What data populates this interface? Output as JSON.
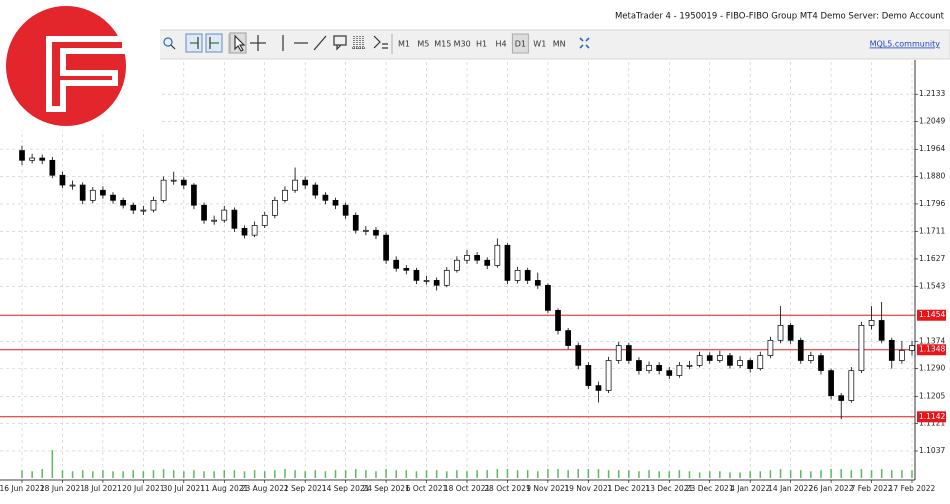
{
  "window": {
    "title": "MetaTrader 4 - 1950019 - FIBO-FIBO Group MT4 Demo Server: Demo Account",
    "timeframes": [
      "M1",
      "M5",
      "M15",
      "M30",
      "H1",
      "H4",
      "D1",
      "W1",
      "MN"
    ],
    "active_timeframe": "D1",
    "link": "MQL5.community"
  },
  "chart_data": {
    "type": "candlestick",
    "categories": [
      "16 Jun 2021",
      null,
      null,
      null,
      "28 Jun 2021",
      null,
      null,
      null,
      "8 Jul 2021",
      null,
      null,
      null,
      "20 Jul 2021",
      null,
      null,
      null,
      "30 Jul 2021",
      null,
      null,
      null,
      "11 Aug 2021",
      null,
      null,
      null,
      "23 Aug 2021",
      null,
      null,
      null,
      "2 Sep 2021",
      null,
      null,
      null,
      "14 Sep 2021",
      null,
      null,
      null,
      "24 Sep 2021",
      null,
      null,
      null,
      "6 Oct 2021",
      null,
      null,
      null,
      "18 Oct 2021",
      null,
      null,
      null,
      "28 Oct 2021",
      null,
      null,
      null,
      "9 Nov 2021",
      null,
      null,
      null,
      "19 Nov 2021",
      null,
      null,
      null,
      "1 Dec 2021",
      null,
      null,
      null,
      "13 Dec 2021",
      null,
      null,
      null,
      "23 Dec 2021",
      null,
      null,
      null,
      "4 Jan 2022",
      null,
      null,
      null,
      "14 Jan 2022",
      null,
      null,
      null,
      "26 Jan 2022",
      null,
      null,
      null,
      "7 Feb 2022",
      null,
      null,
      null,
      "17 Feb 2022"
    ],
    "open": [
      1.196,
      1.193,
      1.1937,
      1.193,
      1.1884,
      1.1854,
      1.1854,
      1.1807,
      1.1838,
      1.1823,
      1.1807,
      1.1792,
      1.1777,
      1.1777,
      1.1807,
      1.1869,
      1.1869,
      1.1854,
      1.1792,
      1.1746,
      1.1746,
      1.1777,
      1.1721,
      1.17,
      1.173,
      1.1761,
      1.1807,
      1.1838,
      1.1869,
      1.1854,
      1.1823,
      1.1807,
      1.1792,
      1.1761,
      1.1715,
      1.1715,
      1.17,
      1.1623,
      1.1598,
      1.1592,
      1.1561,
      1.1561,
      1.1546,
      1.1592,
      1.1623,
      1.1638,
      1.1623,
      1.1607,
      1.1669,
      1.1561,
      1.1592,
      1.1561,
      1.1546,
      1.1469,
      1.1407,
      1.1361,
      1.13,
      1.1238,
      1.1223,
      1.1315,
      1.1361,
      1.1315,
      1.1284,
      1.13,
      1.1284,
      1.1269,
      1.13,
      1.13,
      1.133,
      1.1315,
      1.133,
      1.13,
      1.1315,
      1.129,
      1.133,
      1.1377,
      1.1423,
      1.1377,
      1.1315,
      1.133,
      1.1284,
      1.1207,
      1.1192,
      1.1284,
      1.1423,
      1.1438,
      1.1377,
      1.1315,
      1.1346
    ],
    "high": [
      1.1975,
      1.195,
      1.1948,
      1.194,
      1.1895,
      1.1868,
      1.1862,
      1.1848,
      1.185,
      1.1832,
      1.1815,
      1.18,
      1.179,
      1.1818,
      1.188,
      1.1895,
      1.1878,
      1.186,
      1.18,
      1.176,
      1.179,
      1.1785,
      1.173,
      1.1742,
      1.1772,
      1.1818,
      1.185,
      1.1908,
      1.188,
      1.1862,
      1.1832,
      1.1815,
      1.18,
      1.177,
      1.1728,
      1.1725,
      1.1708,
      1.1635,
      1.1608,
      1.16,
      1.1575,
      1.157,
      1.1602,
      1.1635,
      1.1655,
      1.1648,
      1.1632,
      1.169,
      1.1675,
      1.1603,
      1.16,
      1.1585,
      1.1552,
      1.1475,
      1.1415,
      1.137,
      1.131,
      1.125,
      1.1326,
      1.1372,
      1.137,
      1.1325,
      1.1312,
      1.131,
      1.1295,
      1.131,
      1.1314,
      1.1342,
      1.134,
      1.1345,
      1.1338,
      1.1328,
      1.1322,
      1.1342,
      1.1388,
      1.1482,
      1.143,
      1.1385,
      1.1342,
      1.1338,
      1.129,
      1.1215,
      1.1295,
      1.1434,
      1.1482,
      1.1495,
      1.1385,
      1.1375,
      1.1375
    ],
    "low": [
      1.1915,
      1.192,
      1.1918,
      1.1875,
      1.1845,
      1.184,
      1.1795,
      1.1798,
      1.1812,
      1.1797,
      1.1782,
      1.1765,
      1.1762,
      1.177,
      1.18,
      1.1855,
      1.1842,
      1.178,
      1.1735,
      1.1732,
      1.1738,
      1.171,
      1.169,
      1.1694,
      1.1722,
      1.1752,
      1.18,
      1.183,
      1.1842,
      1.1812,
      1.1795,
      1.178,
      1.175,
      1.1705,
      1.17,
      1.1688,
      1.1612,
      1.1588,
      1.158,
      1.155,
      1.1548,
      1.153,
      1.154,
      1.1585,
      1.1612,
      1.1612,
      1.1596,
      1.16,
      1.155,
      1.1552,
      1.155,
      1.1535,
      1.146,
      1.1395,
      1.135,
      1.1288,
      1.1228,
      1.1186,
      1.1215,
      1.1305,
      1.1305,
      1.1272,
      1.1275,
      1.1272,
      1.1258,
      1.1262,
      1.1288,
      1.1294,
      1.1305,
      1.1308,
      1.129,
      1.1292,
      1.1278,
      1.1284,
      1.1322,
      1.1368,
      1.1366,
      1.1305,
      1.1306,
      1.1272,
      1.1196,
      1.1135,
      1.1185,
      1.1276,
      1.141,
      1.1368,
      1.129,
      1.1305,
      1.133
    ],
    "close": [
      1.193,
      1.1937,
      1.193,
      1.1884,
      1.1854,
      1.1854,
      1.1807,
      1.1838,
      1.1823,
      1.1807,
      1.1792,
      1.1777,
      1.1777,
      1.1807,
      1.1869,
      1.1869,
      1.1854,
      1.1792,
      1.1746,
      1.1746,
      1.1777,
      1.1721,
      1.17,
      1.173,
      1.1761,
      1.1807,
      1.1838,
      1.1869,
      1.1854,
      1.1823,
      1.1807,
      1.1792,
      1.1761,
      1.1715,
      1.1715,
      1.17,
      1.1623,
      1.1598,
      1.1592,
      1.1561,
      1.1561,
      1.1546,
      1.1592,
      1.1623,
      1.1638,
      1.1623,
      1.1607,
      1.1669,
      1.1561,
      1.1592,
      1.1561,
      1.1546,
      1.1469,
      1.1407,
      1.1361,
      1.13,
      1.1238,
      1.1223,
      1.1315,
      1.1361,
      1.1315,
      1.1284,
      1.13,
      1.1284,
      1.1269,
      1.13,
      1.13,
      1.133,
      1.1315,
      1.133,
      1.13,
      1.1315,
      1.129,
      1.133,
      1.1377,
      1.1423,
      1.1377,
      1.1315,
      1.133,
      1.1284,
      1.1207,
      1.1192,
      1.1284,
      1.1423,
      1.1438,
      1.1377,
      1.1315,
      1.1346,
      1.1361
    ],
    "volume": [
      7,
      6,
      8,
      25,
      7,
      6,
      7,
      6,
      7,
      6,
      6,
      7,
      6,
      7,
      8,
      7,
      6,
      7,
      6,
      6,
      7,
      7,
      6,
      7,
      6,
      7,
      8,
      7,
      6,
      7,
      6,
      7,
      7,
      8,
      7,
      6,
      8,
      7,
      7,
      6,
      7,
      7,
      6,
      7,
      6,
      7,
      7,
      8,
      8,
      7,
      7,
      6,
      8,
      8,
      7,
      8,
      8,
      8,
      7,
      7,
      7,
      6,
      7,
      6,
      6,
      7,
      6,
      5,
      6,
      6,
      5,
      5,
      6,
      6,
      7,
      8,
      7,
      7,
      6,
      7,
      8,
      8,
      7,
      8,
      7,
      8,
      7,
      7,
      7
    ],
    "up_color": "#ffffff",
    "down_color": "#000000",
    "volume_color": "#5cb85c",
    "ylim": [
      1.0954,
      1.2232
    ],
    "yticks": [
      1.2133,
      1.2049,
      1.1964,
      {
        "value": 1.188,
        "label": "1.1880"
      },
      1.1796,
      1.1711,
      1.1627,
      1.1543,
      1.1374,
      {
        "value": 1.129,
        "label": "1.1290"
      },
      1.1205,
      1.1121,
      1.1037
    ],
    "levels": [
      1.1454,
      1.1348,
      1.1142
    ],
    "level_color": "#e8161b",
    "grid": true
  }
}
